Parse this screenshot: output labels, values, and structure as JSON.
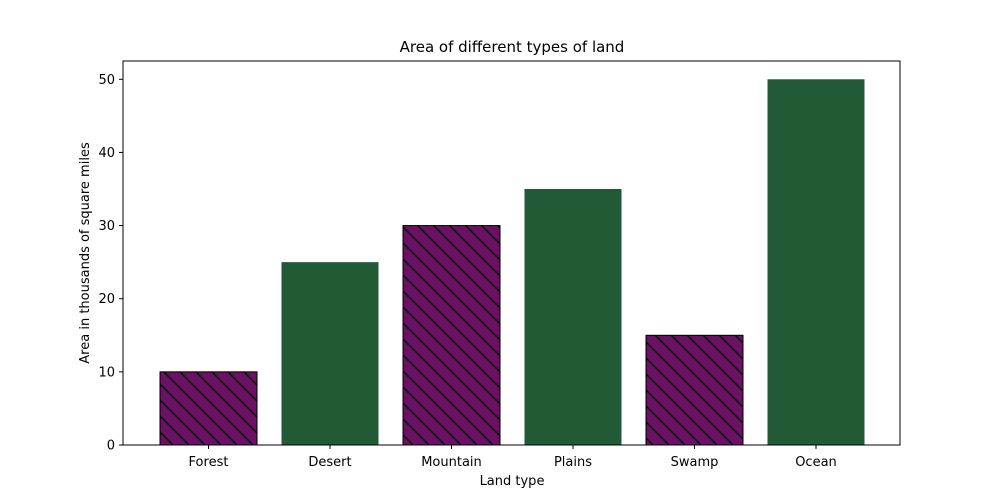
{
  "chart_data": {
    "type": "bar",
    "title": "Area of different types of land",
    "xlabel": "Land type",
    "ylabel": "Area in thousands of square miles",
    "categories": [
      "Forest",
      "Desert",
      "Mountain",
      "Plains",
      "Swamp",
      "Ocean"
    ],
    "values": [
      10,
      25,
      30,
      35,
      15,
      50
    ],
    "ylim": [
      0,
      52.5
    ],
    "yticks": [
      0,
      10,
      20,
      30,
      40,
      50
    ],
    "grid": false,
    "bar_colors": [
      "#6a1163",
      "#225a36",
      "#6a1163",
      "#225a36",
      "#6a1163",
      "#225a36"
    ],
    "bar_hatched": [
      true,
      false,
      true,
      false,
      true,
      false
    ],
    "hatch_color": "#000000"
  }
}
